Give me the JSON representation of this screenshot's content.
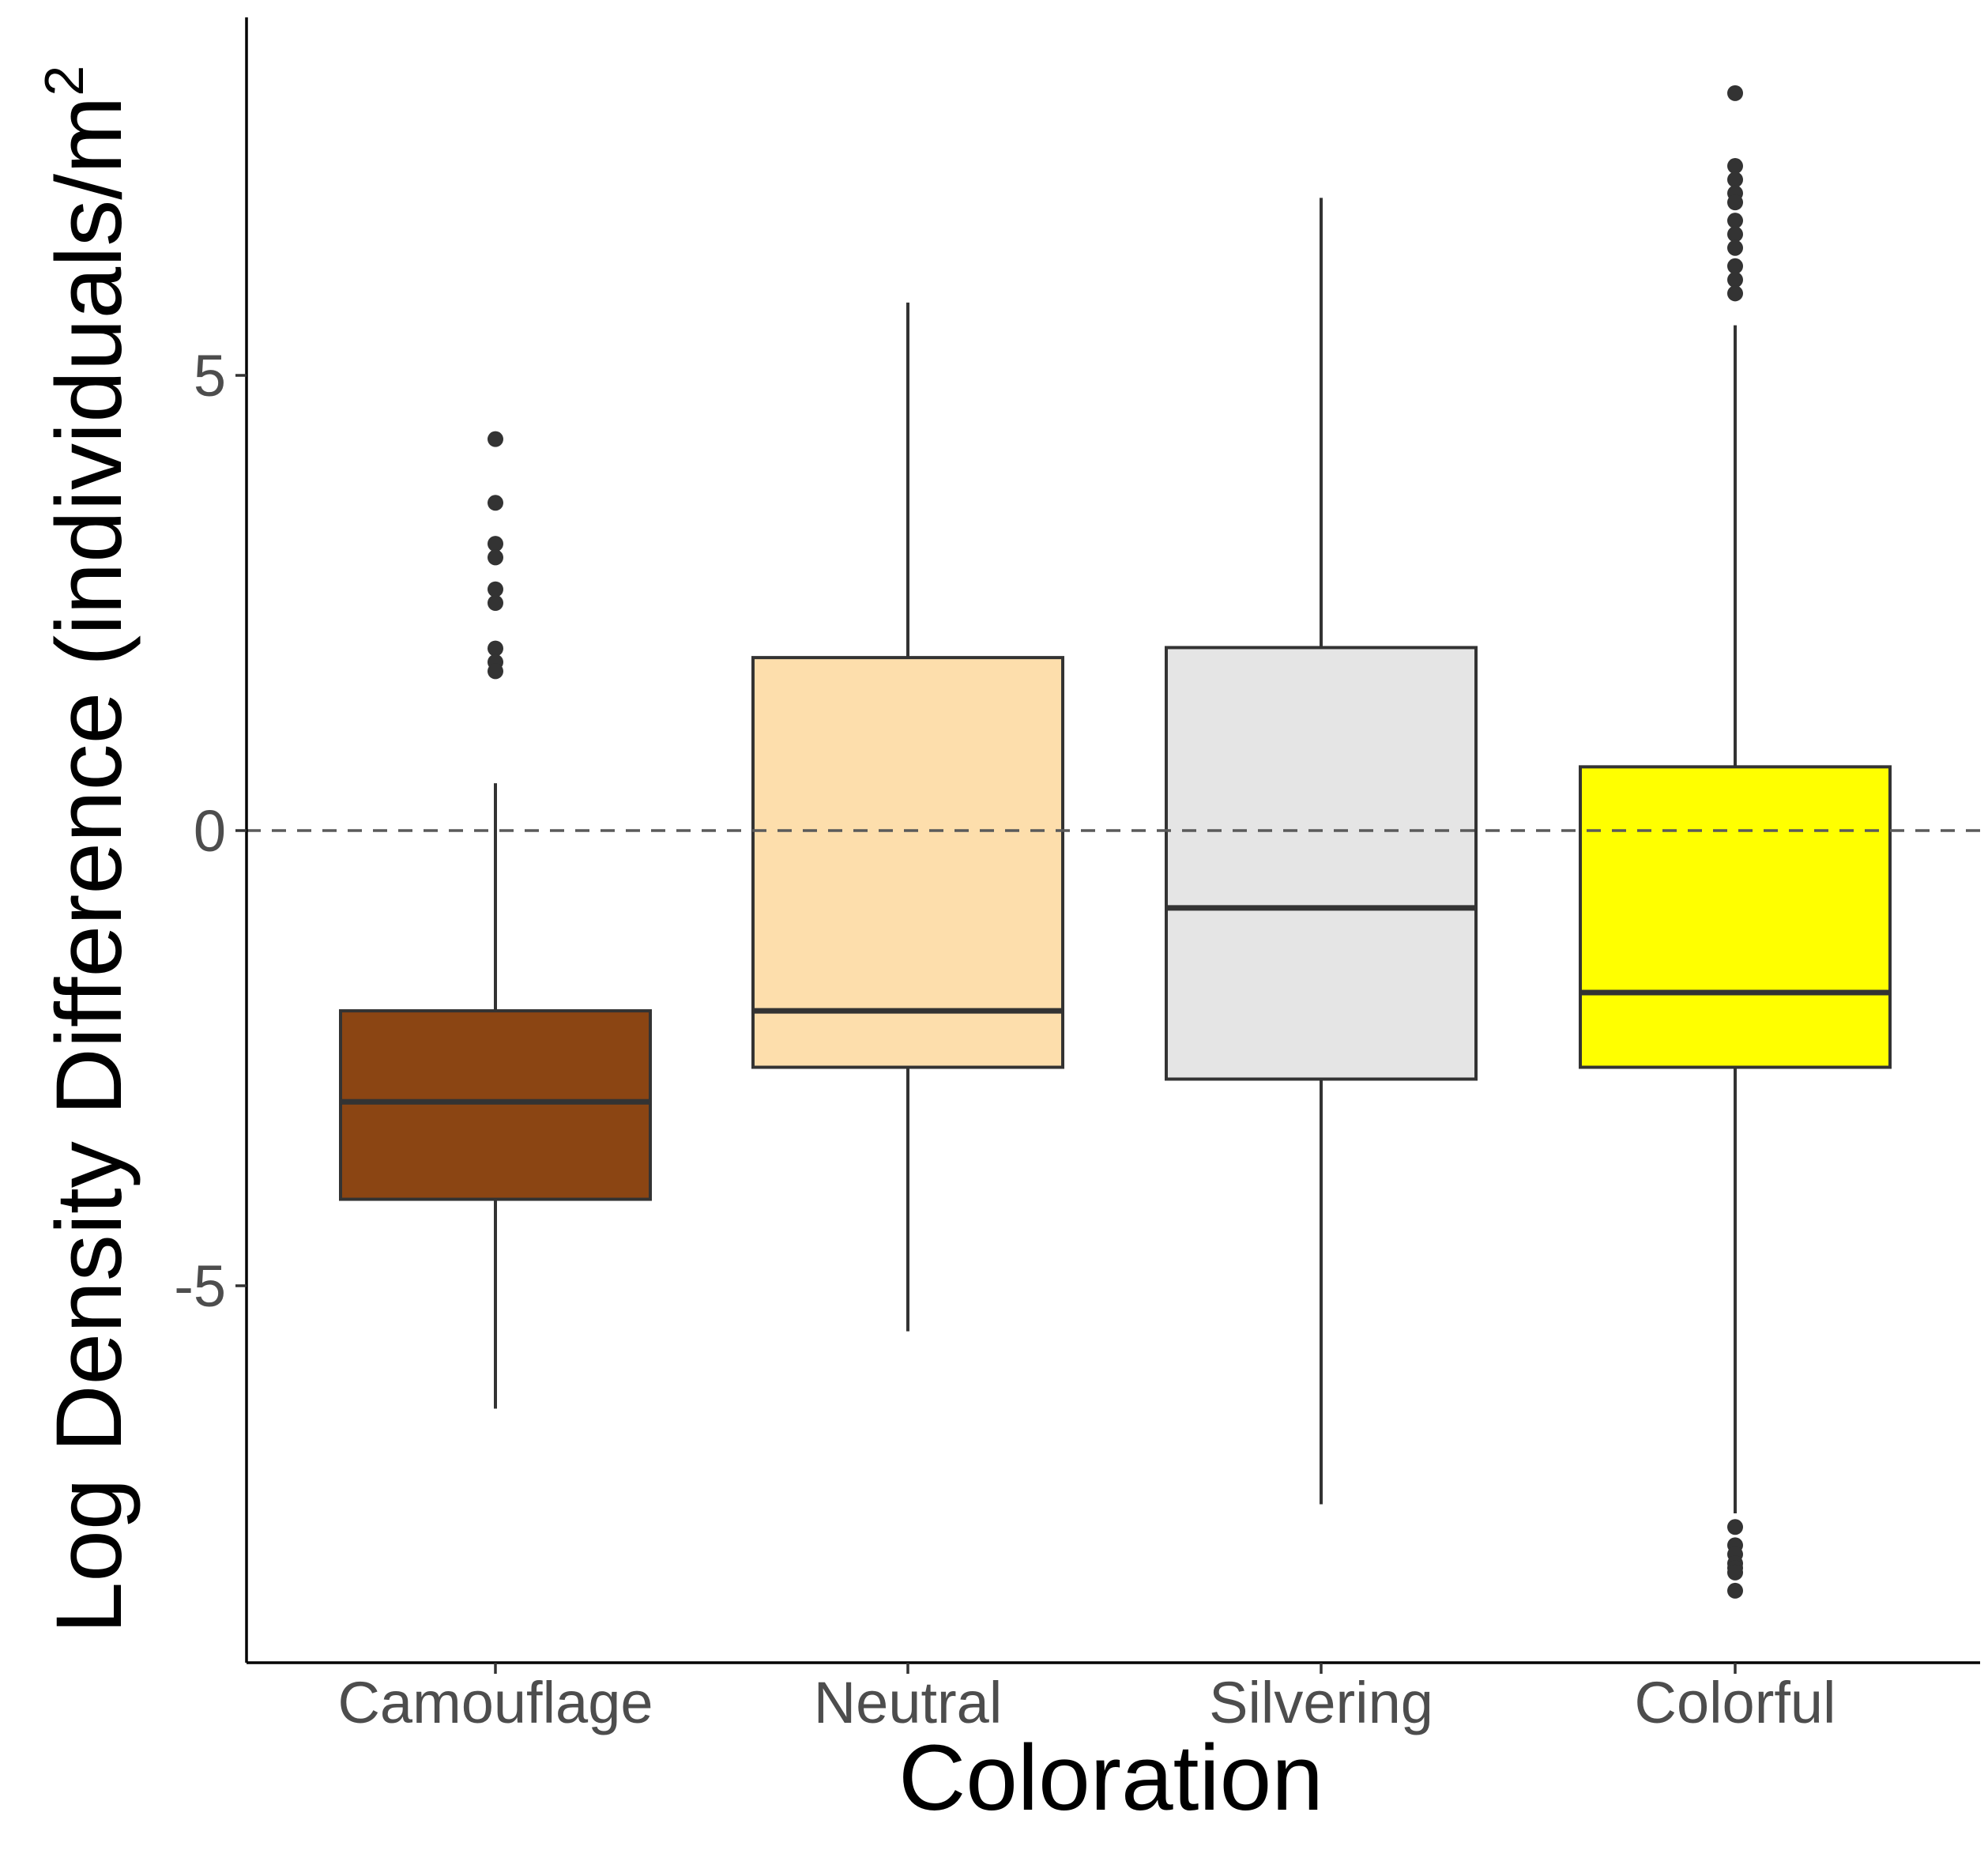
{
  "chart_data": {
    "type": "box",
    "xlabel": "Coloration",
    "ylabel": "Log Density Difference (individuals/m²)",
    "ylabel_parts": {
      "main": "Log Density Difference ",
      "open": "(",
      "unit": "individuals",
      "slash": "/",
      "m": "m",
      "sup": "2",
      "close": ")"
    },
    "ylim": [
      -9.1,
      9.0
    ],
    "yticks": [
      {
        "value": -5,
        "label": "-5"
      },
      {
        "value": 0,
        "label": "0"
      },
      {
        "value": 5,
        "label": "5"
      }
    ],
    "reference_line": {
      "y": 0,
      "style": "dashed"
    },
    "grid": false,
    "categories": [
      "Camouflage",
      "Neutral",
      "Silvering",
      "Colorful"
    ],
    "boxes": [
      {
        "category": "Camouflage",
        "fill": "#8B4513",
        "lower_whisker": -6.35,
        "q1": -4.05,
        "median": -2.98,
        "q3": -1.98,
        "upper_whisker": 0.52,
        "outliers": [
          4.3,
          3.6,
          3.15,
          3.0,
          2.65,
          2.5,
          2.0,
          1.85,
          1.75
        ]
      },
      {
        "category": "Neutral",
        "fill": "#FDDEAC",
        "lower_whisker": -5.5,
        "q1": -2.6,
        "median": -1.98,
        "q3": 1.9,
        "upper_whisker": 5.8,
        "outliers": []
      },
      {
        "category": "Silvering",
        "fill": "#E5E5E5",
        "lower_whisker": -7.4,
        "q1": -2.73,
        "median": -0.85,
        "q3": 2.01,
        "upper_whisker": 6.95,
        "outliers": []
      },
      {
        "category": "Colorful",
        "fill": "#FFFF00",
        "lower_whisker": -7.5,
        "q1": -2.6,
        "median": -1.78,
        "q3": 0.7,
        "upper_whisker": 5.55,
        "outliers": [
          8.1,
          7.3,
          7.15,
          7.0,
          6.9,
          6.7,
          6.55,
          6.4,
          6.2,
          6.05,
          5.9,
          -7.65,
          -7.85,
          -7.95,
          -8.05,
          -8.1,
          -8.15,
          -8.35
        ]
      }
    ],
    "colors": {
      "axis": "#000000",
      "box_stroke": "#333333",
      "tick_label": "#4d4d4d",
      "reference_line": "#5a5a5a"
    }
  }
}
